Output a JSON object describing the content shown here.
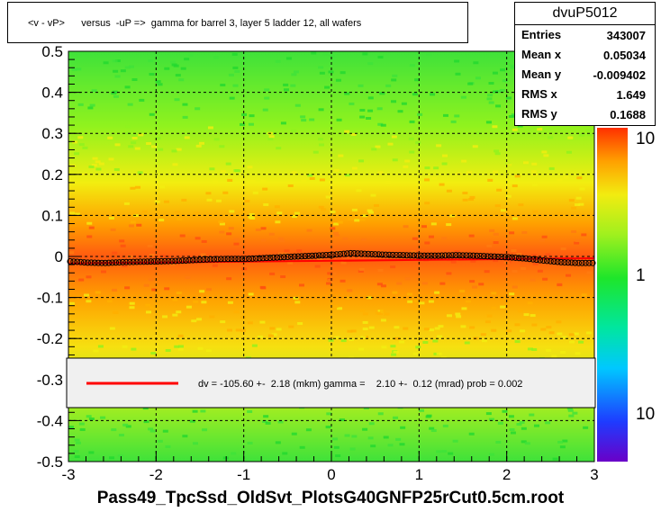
{
  "title": "<v - vP>      versus  -uP =>  gamma for barrel 3, layer 5 ladder 12, all wafers",
  "stats": {
    "name": "dvuP5012",
    "rows": [
      {
        "label": "Entries",
        "value": "343007"
      },
      {
        "label": "Mean x",
        "value": "0.05034"
      },
      {
        "label": "Mean y",
        "value": "-0.009402"
      },
      {
        "label": "RMS x",
        "value": "1.649"
      },
      {
        "label": "RMS y",
        "value": "0.1688"
      }
    ]
  },
  "fit_legend": "dv = -105.60 +-  2.18 (mkm) gamma =    2.10 +-  0.12 (mrad) prob = 0.002",
  "x_axis_title": "Pass49_TpcSsd_OldSvt_PlotsG40GNFP25rCut0.5cm.root",
  "colors": {
    "fit_line": "#ff0000",
    "profile_marker": "#000000"
  },
  "chart_data": {
    "type": "heatmap",
    "xlim": [
      -3,
      3
    ],
    "ylim": [
      -0.5,
      0.5
    ],
    "x_ticks": [
      "-3",
      "-2",
      "-1",
      "0",
      "1",
      "2",
      "3"
    ],
    "y_ticks": [
      "-0.5",
      "-0.4",
      "-0.3",
      "-0.2",
      "-0.1",
      "0",
      "0.1",
      "0.2",
      "0.3",
      "0.4",
      "0.5"
    ],
    "z_scale": "log",
    "z_ticks": [
      "10",
      "1",
      "10"
    ],
    "grid": true,
    "profile": {
      "x": [
        -2.9,
        -2.7,
        -2.5,
        -2.3,
        -2.1,
        -1.9,
        -1.7,
        -1.5,
        -1.3,
        -1.1,
        -0.9,
        -0.7,
        -0.5,
        -0.3,
        -0.1,
        0.1,
        0.3,
        0.5,
        0.7,
        0.9,
        1.1,
        1.3,
        1.5,
        1.7,
        1.9,
        2.1,
        2.3,
        2.5,
        2.7,
        2.9
      ],
      "y": [
        -0.012,
        -0.015,
        -0.016,
        -0.014,
        -0.013,
        -0.012,
        -0.011,
        -0.009,
        -0.007,
        -0.006,
        -0.006,
        -0.004,
        -0.002,
        0.0,
        0.002,
        0.004,
        0.008,
        0.006,
        0.004,
        0.003,
        0.002,
        0.002,
        0.003,
        0.002,
        0.0,
        -0.002,
        -0.005,
        -0.01,
        -0.014,
        -0.016
      ]
    },
    "fit": {
      "dv_mkm": -105.6,
      "dv_err": 2.18,
      "gamma_mrad": 2.1,
      "gamma_err": 0.12,
      "prob": 0.002
    }
  }
}
